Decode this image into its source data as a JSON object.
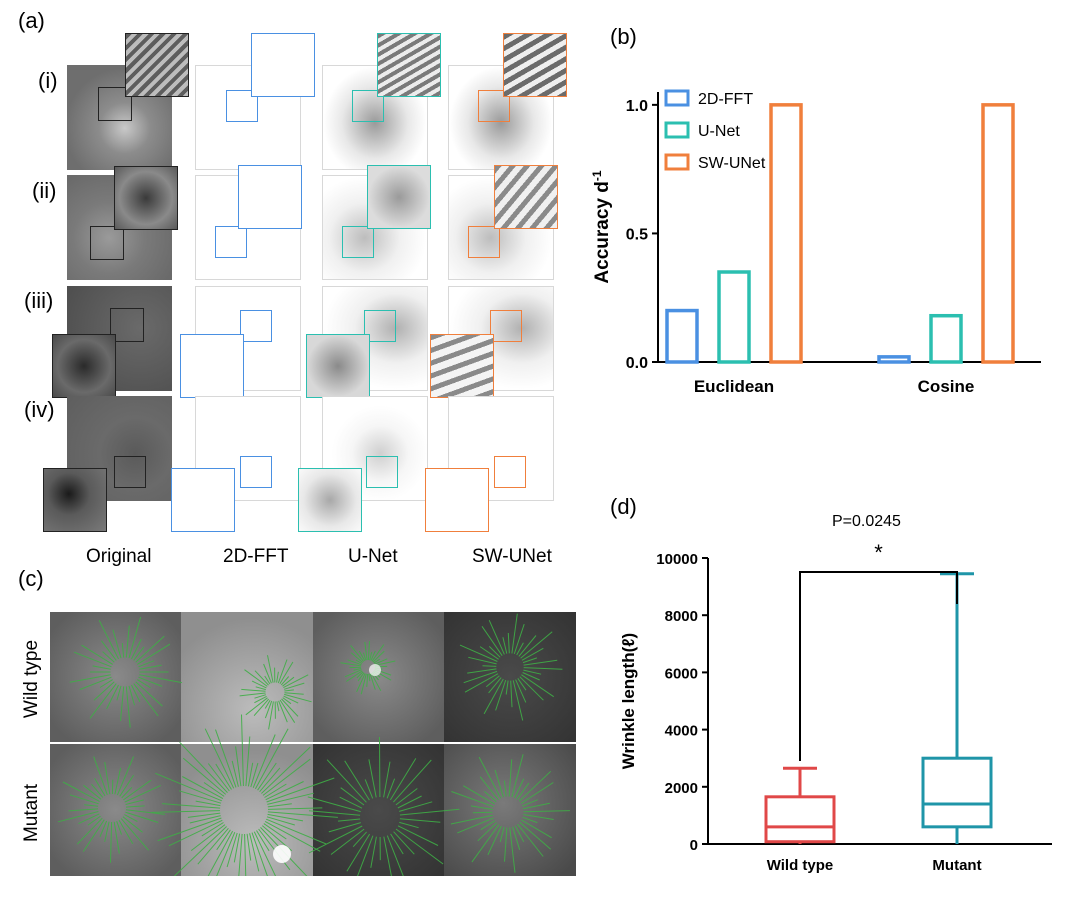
{
  "panel_labels": {
    "a": "(a)",
    "b": "(b)",
    "c": "(c)",
    "d": "(d)"
  },
  "panel_a": {
    "row_labels": [
      "(i)",
      "(ii)",
      "(iii)",
      "(iv)"
    ],
    "column_labels": [
      "Original",
      "2D-FFT",
      "U-Net",
      "SW-UNet"
    ]
  },
  "panel_c": {
    "row_labels": [
      "Wild type",
      "Mutant"
    ]
  },
  "colors": {
    "fft": "#4a90e2",
    "unet": "#2bbfb0",
    "swunet": "#f07f3c",
    "wildtype": "#e04848",
    "mutant": "#1f95a8",
    "wrinkle_green": "#3fae46"
  },
  "chart_data": [
    {
      "type": "bar",
      "panel": "(b)",
      "categories": [
        "Euclidean",
        "Cosine"
      ],
      "series": [
        {
          "name": "2D-FFT",
          "values": [
            0.2,
            0.02
          ]
        },
        {
          "name": "U-Net",
          "values": [
            0.35,
            0.18
          ]
        },
        {
          "name": "SW-UNet",
          "values": [
            1.0,
            1.0
          ]
        }
      ],
      "ylabel": "Accuracy d-1",
      "ylim": [
        0,
        1.05
      ],
      "yticks": [
        "0.0",
        "0.5",
        "1.0"
      ],
      "legend": "top-left",
      "grid": false
    },
    {
      "type": "box",
      "panel": "(d)",
      "categories": [
        "Wild type",
        "Mutant"
      ],
      "boxes": [
        {
          "name": "Wild type",
          "min": 0,
          "q1": 80,
          "median": 600,
          "q3": 1650,
          "max": 2650
        },
        {
          "name": "Mutant",
          "min": 0,
          "q1": 600,
          "median": 1400,
          "q3": 3000,
          "max": 9450
        }
      ],
      "ylabel": "Wrinkle length(ℓ)",
      "ylim": [
        0,
        10000
      ],
      "yticks": [
        "0",
        "2000",
        "4000",
        "6000",
        "8000",
        "10000"
      ],
      "annotation": {
        "p_value": "P=0.0245",
        "significance": "*"
      },
      "grid": false
    }
  ]
}
